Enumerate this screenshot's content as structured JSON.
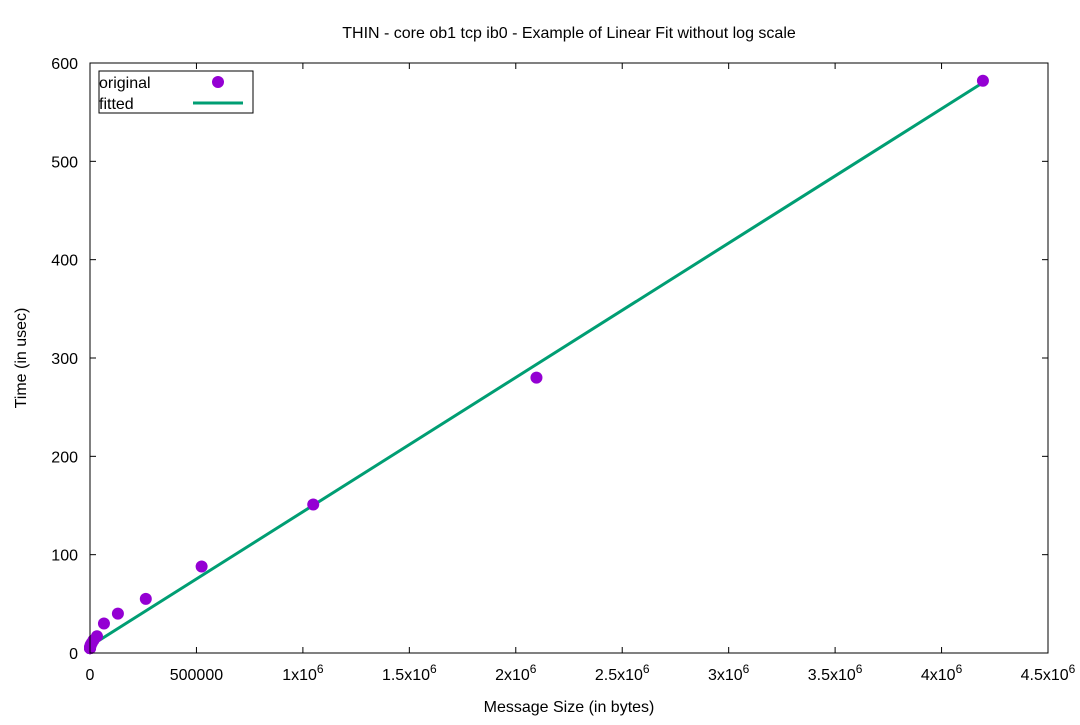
{
  "chart_data": {
    "type": "scatter",
    "title": "THIN - core ob1 tcp ib0 - Example of Linear Fit without log scale",
    "xlabel": "Message Size (in bytes)",
    "ylabel": "Time (in usec)",
    "xlim": [
      0,
      4500000
    ],
    "ylim": [
      0,
      600
    ],
    "grid": false,
    "legend_position": "top-left",
    "x_ticks": [
      {
        "value": 0,
        "base": "0",
        "exp": ""
      },
      {
        "value": 500000,
        "base": "500000",
        "exp": ""
      },
      {
        "value": 1000000,
        "base": "1x10",
        "exp": "6"
      },
      {
        "value": 1500000,
        "base": "1.5x10",
        "exp": "6"
      },
      {
        "value": 2000000,
        "base": "2x10",
        "exp": "6"
      },
      {
        "value": 2500000,
        "base": "2.5x10",
        "exp": "6"
      },
      {
        "value": 3000000,
        "base": "3x10",
        "exp": "6"
      },
      {
        "value": 3500000,
        "base": "3.5x10",
        "exp": "6"
      },
      {
        "value": 4000000,
        "base": "4x10",
        "exp": "6"
      },
      {
        "value": 4500000,
        "base": "4.5x10",
        "exp": "6"
      }
    ],
    "y_ticks": [
      {
        "value": 0,
        "label": "0"
      },
      {
        "value": 100,
        "label": "100"
      },
      {
        "value": 200,
        "label": "200"
      },
      {
        "value": 300,
        "label": "300"
      },
      {
        "value": 400,
        "label": "400"
      },
      {
        "value": 500,
        "label": "500"
      },
      {
        "value": 600,
        "label": "600"
      }
    ],
    "series": [
      {
        "name": "original",
        "type": "scatter",
        "color": "#9400d3",
        "x": [
          0,
          1,
          2,
          4,
          8,
          16,
          32,
          64,
          128,
          256,
          512,
          1024,
          2048,
          4096,
          8192,
          16384,
          32768,
          65536,
          131072,
          262144,
          524288,
          1048576,
          2097152,
          4194304
        ],
        "y": [
          5,
          5,
          5,
          5,
          5,
          5,
          5,
          5,
          5,
          5.5,
          6,
          6.5,
          7.5,
          8.5,
          10,
          13,
          17,
          30,
          40,
          55,
          88,
          151,
          280,
          582
        ]
      },
      {
        "name": "fitted",
        "type": "line",
        "color": "#009e73",
        "x": [
          0,
          4194304
        ],
        "y": [
          7,
          580
        ]
      }
    ]
  }
}
